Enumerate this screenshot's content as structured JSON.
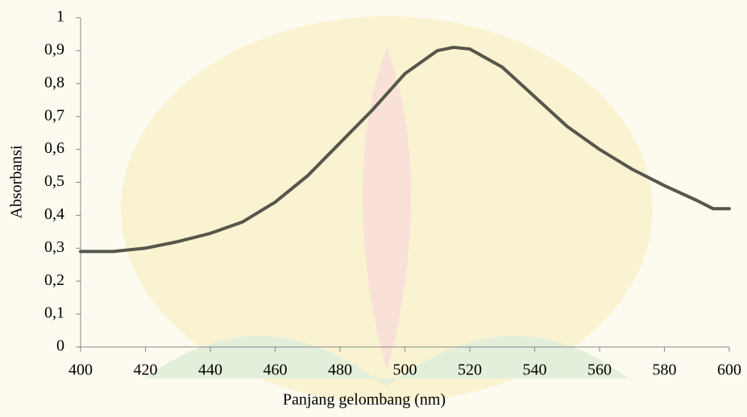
{
  "chart_data": {
    "type": "line",
    "xlabel": "Panjang gelombang (nm)",
    "ylabel": "Absorbansi",
    "x": [
      400,
      410,
      420,
      430,
      440,
      450,
      460,
      470,
      480,
      490,
      500,
      510,
      515,
      520,
      530,
      540,
      550,
      560,
      570,
      580,
      590,
      595,
      600
    ],
    "series": [
      {
        "color": "#56564a",
        "values": [
          0.29,
          0.29,
          0.3,
          0.32,
          0.345,
          0.38,
          0.44,
          0.52,
          0.62,
          0.72,
          0.83,
          0.9,
          0.91,
          0.905,
          0.85,
          0.76,
          0.67,
          0.6,
          0.54,
          0.49,
          0.445,
          0.42,
          0.42
        ]
      }
    ],
    "xlim": [
      400,
      600
    ],
    "xticks": [
      400,
      420,
      440,
      460,
      480,
      500,
      520,
      540,
      560,
      580,
      600
    ],
    "ylim": [
      0,
      1
    ],
    "yticks": [
      0,
      {
        "value": 0.1,
        "label": "0,1"
      },
      {
        "value": 0.2,
        "label": "0,2"
      },
      {
        "value": 0.3,
        "label": "0,3"
      },
      {
        "value": 0.4,
        "label": "0,4"
      },
      {
        "value": 0.5,
        "label": "0,5"
      },
      {
        "value": 0.6,
        "label": "0,6"
      },
      {
        "value": 0.7,
        "label": "0,7"
      },
      {
        "value": 0.8,
        "label": "0,8"
      },
      {
        "value": 0.9,
        "label": "0,9"
      },
      1
    ],
    "grid": false
  }
}
